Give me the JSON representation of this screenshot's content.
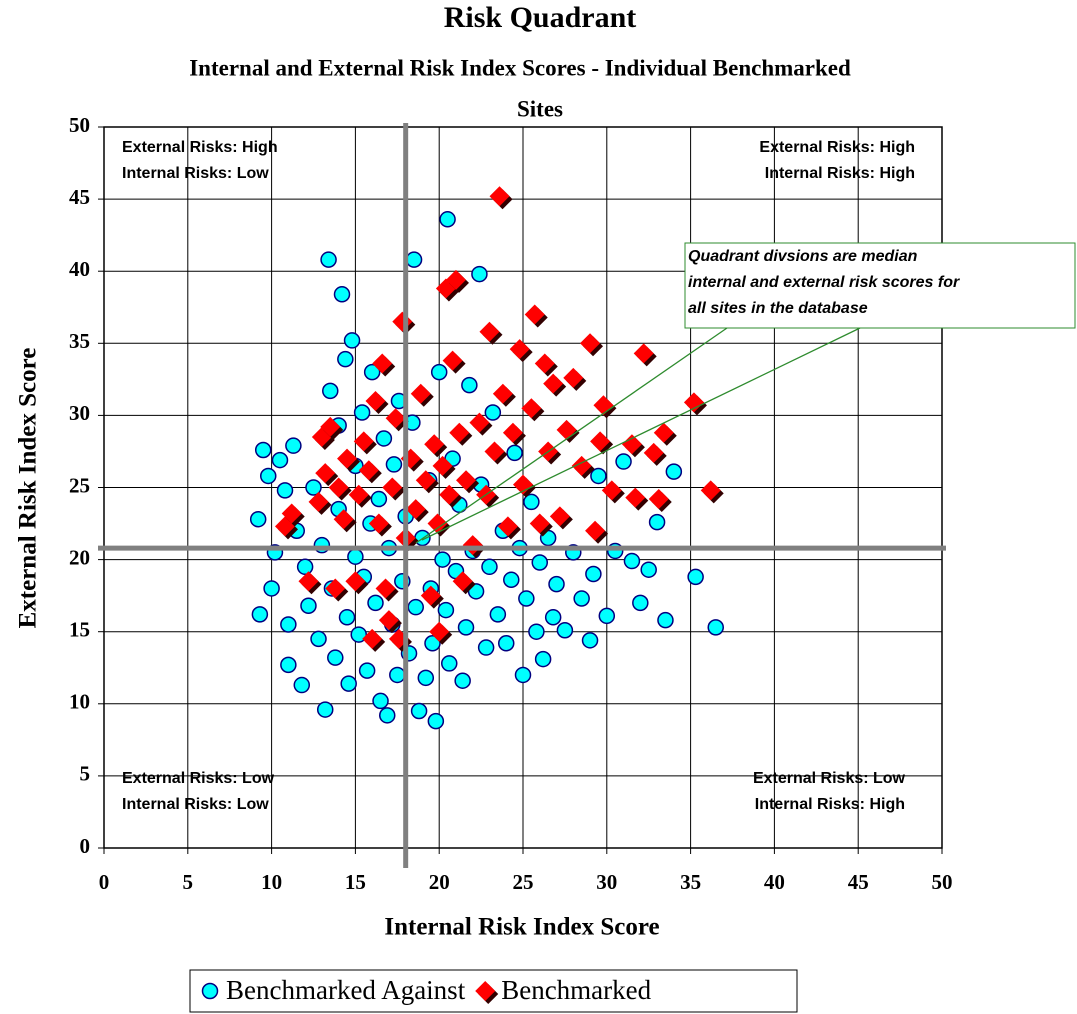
{
  "chart_data": {
    "type": "scatter",
    "title": "Risk Quadrant",
    "subtitle": [
      "Internal and External Risk Index Scores - Individual Benchmarked",
      "Sites"
    ],
    "x_label": "Internal Risk Index Score",
    "y_label": "External Risk Index Score",
    "xlim": [
      0,
      50
    ],
    "ylim": [
      0,
      50
    ],
    "xticks": [
      0,
      5,
      10,
      15,
      20,
      25,
      30,
      35,
      40,
      45,
      50
    ],
    "yticks": [
      0,
      5,
      10,
      15,
      20,
      25,
      30,
      35,
      40,
      45,
      50
    ],
    "grid": true,
    "legend": "bottom",
    "median_lines": {
      "x": 18,
      "y": 20.8,
      "color": "#808080"
    },
    "quadrant_labels": [
      [
        "External Risks: High",
        "Internal Risks: Low"
      ],
      [
        "External Risks: High",
        "Internal Risks: High"
      ],
      [
        "External Risks: Low",
        "Internal Risks: Low"
      ],
      [
        "External Risks: Low",
        "Internal Risks: High"
      ]
    ],
    "note": [
      "Quadrant divsions are median",
      "internal and external risk scores for",
      "all sites in the database"
    ],
    "series": [
      {
        "name": "Benchmarked Against",
        "color": "#00ffff",
        "marker": "circle",
        "x": [
          9.2,
          9.3,
          9.5,
          9.8,
          10,
          10.2,
          10.5,
          10.8,
          11,
          11,
          11.3,
          11.5,
          11.8,
          12,
          12.2,
          12.5,
          12.8,
          13,
          13.2,
          13.4,
          13.5,
          13.6,
          13.8,
          14,
          14,
          14.2,
          14.4,
          14.5,
          14.6,
          14.8,
          15,
          15,
          15.2,
          15.4,
          15.5,
          15.7,
          15.9,
          16,
          16.2,
          16.4,
          16.5,
          16.7,
          16.9,
          17,
          17.2,
          17.3,
          17.5,
          17.6,
          17.8,
          18,
          18.2,
          18.4,
          18.5,
          18.6,
          18.8,
          19,
          19.2,
          19.4,
          19.5,
          19.6,
          19.8,
          20,
          20.2,
          20.4,
          20.5,
          20.6,
          20.8,
          21,
          21.2,
          21.4,
          21.6,
          21.8,
          22,
          22.2,
          22.4,
          22.5,
          22.8,
          23,
          23.2,
          23.5,
          23.8,
          24,
          24.3,
          24.5,
          24.8,
          25,
          25.2,
          25.5,
          25.8,
          26,
          26.2,
          26.5,
          26.8,
          27,
          27.5,
          28,
          28.5,
          29,
          29.2,
          29.5,
          30,
          30.5,
          31,
          31.5,
          32,
          32.5,
          33,
          33.5,
          34,
          35.3,
          36.5
        ],
        "values": [
          22.8,
          16.2,
          27.6,
          25.8,
          18,
          20.5,
          26.9,
          24.8,
          15.5,
          12.7,
          27.9,
          22,
          11.3,
          19.5,
          16.8,
          25,
          14.5,
          21,
          9.6,
          40.8,
          31.7,
          18,
          13.2,
          23.5,
          29.3,
          38.4,
          33.9,
          16,
          11.4,
          35.2,
          20.2,
          26.5,
          14.8,
          30.2,
          18.8,
          12.3,
          22.5,
          33,
          17,
          24.2,
          10.2,
          28.4,
          9.2,
          20.8,
          15.5,
          26.6,
          12,
          31,
          18.5,
          23,
          13.5,
          29.5,
          40.8,
          16.7,
          9.5,
          21.5,
          11.8,
          25.5,
          18,
          14.2,
          8.8,
          33,
          20,
          16.5,
          43.6,
          12.8,
          27,
          19.2,
          23.8,
          11.6,
          15.3,
          32.1,
          20.6,
          17.8,
          39.8,
          25.2,
          13.9,
          19.5,
          30.2,
          16.2,
          22,
          14.2,
          18.6,
          27.4,
          20.8,
          12,
          17.3,
          24,
          15,
          19.8,
          13.1,
          21.5,
          16,
          18.3,
          15.1,
          20.5,
          17.3,
          14.4,
          19,
          25.8,
          16.1,
          20.6,
          26.8,
          19.9,
          17,
          19.3,
          22.6,
          15.8,
          26.1,
          18.8,
          15.3
        ]
      },
      {
        "name": "Benchmarked",
        "color": "#ff0000",
        "marker": "diamond",
        "x": [
          10.8,
          11.2,
          12.2,
          12.8,
          13,
          13.2,
          13.5,
          13.8,
          14,
          14.3,
          14.5,
          15,
          15.2,
          15.5,
          15.8,
          16,
          16.2,
          16.4,
          16.6,
          16.8,
          17,
          17.2,
          17.4,
          17.6,
          17.8,
          18,
          18.3,
          18.6,
          18.9,
          19.2,
          19.5,
          19.7,
          19.9,
          20,
          20.2,
          20.4,
          20.6,
          20.8,
          21,
          21.2,
          21.4,
          21.6,
          22,
          22.4,
          22.8,
          23,
          23.3,
          23.6,
          23.8,
          24.1,
          24.4,
          24.8,
          25,
          25.5,
          25.7,
          26,
          26.3,
          26.5,
          26.8,
          27.2,
          27.6,
          28,
          28.5,
          29,
          29.3,
          29.6,
          29.8,
          30.3,
          31.5,
          31.7,
          32.2,
          32.8,
          33.4,
          33.1,
          35.2,
          36.2
        ],
        "values": [
          22.3,
          23.2,
          18.5,
          24,
          28.5,
          26,
          29.2,
          18,
          25,
          22.8,
          27,
          18.5,
          24.5,
          28.2,
          26.2,
          14.5,
          31,
          22.5,
          33.6,
          18,
          15.8,
          25,
          29.8,
          14.5,
          36.5,
          21.5,
          27,
          23.5,
          31.5,
          25.5,
          17.5,
          28,
          22.5,
          15,
          26.5,
          38.8,
          24.5,
          33.8,
          39.4,
          28.8,
          18.5,
          25.5,
          21,
          29.5,
          24.5,
          35.8,
          27.5,
          45.2,
          31.5,
          22.3,
          28.8,
          34.6,
          25.2,
          30.5,
          37,
          22.5,
          33.6,
          27.5,
          32.2,
          23,
          29,
          32.6,
          26.5,
          35,
          22,
          28.2,
          30.7,
          24.8,
          28,
          24.3,
          34.3,
          27.4,
          28.8,
          24.2,
          30.9,
          24.8
        ]
      }
    ]
  }
}
